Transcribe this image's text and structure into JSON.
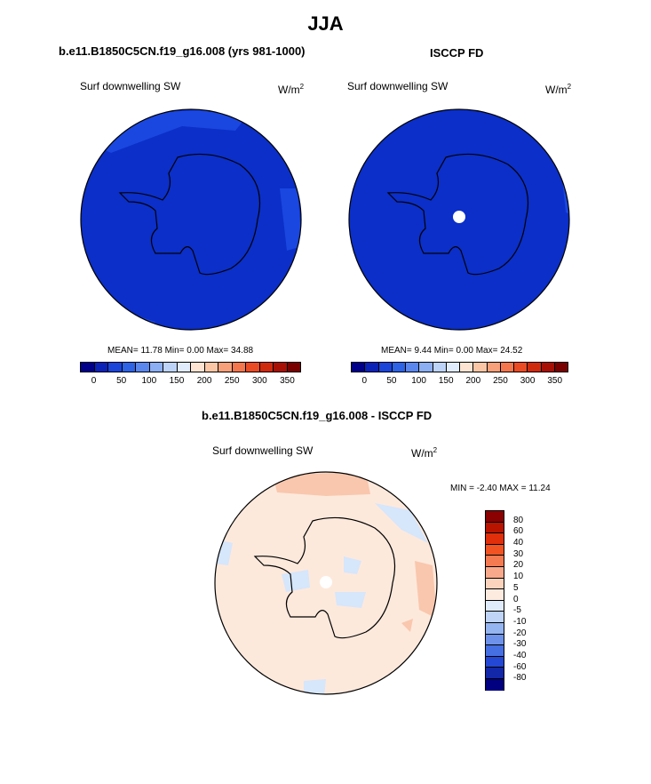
{
  "page": {
    "title": "JJA",
    "panel_left_title": "b.e11.B1850C5CN.f19_g16.008 (yrs 981-1000)",
    "panel_right_title": "ISCCP FD",
    "panel_bottom_title": "b.e11.B1850C5CN.f19_g16.008 - ISCCP FD"
  },
  "maps": {
    "left": {
      "variable": "Surf downwelling SW",
      "units_base": "W/m",
      "units_exp": "2",
      "stats": "MEAN=  11.78  Min=   0.00  Max=  34.88"
    },
    "right": {
      "variable": "Surf downwelling SW",
      "units_base": "W/m",
      "units_exp": "2",
      "stats": "MEAN=   9.44  Min=   0.00  Max=  24.52"
    },
    "diff": {
      "variable": "Surf downwelling SW",
      "units_base": "W/m",
      "units_exp": "2",
      "stats": "MIN =  -2.40 MAX =  11.24"
    }
  },
  "colorbar_top": {
    "colors": [
      "#00008b",
      "#0b22b8",
      "#1b44d9",
      "#2e63e6",
      "#5a87ee",
      "#8caef2",
      "#bdd3f7",
      "#e0ecfb",
      "#fde4d2",
      "#fbc6a6",
      "#f8a07a",
      "#f3764f",
      "#ea4b25",
      "#d02a0d",
      "#a81006",
      "#7a0000"
    ],
    "labels": [
      "0",
      "50",
      "100",
      "150",
      "200",
      "250",
      "300",
      "350"
    ]
  },
  "colorbar_diff": {
    "colors": [
      "#8b0000",
      "#b81400",
      "#e02f0a",
      "#f25322",
      "#f47a52",
      "#f8a98b",
      "#fcd3bd",
      "#fdebdf",
      "#e0ecfb",
      "#bfd4f6",
      "#95b5f1",
      "#6e92ea",
      "#456fe2",
      "#2448d3",
      "#1228a8",
      "#000080"
    ],
    "labels": [
      "80",
      "60",
      "40",
      "30",
      "20",
      "10",
      "5",
      "0",
      "-5",
      "-10",
      "-20",
      "-30",
      "-40",
      "-60",
      "-80"
    ]
  },
  "colors": {
    "base_blue": "#0b2fc8",
    "blue_light": "#1a47e0",
    "diff_base": "#fde9dc",
    "diff_orange": "#f9c7ad",
    "diff_blue": "#d6e6fb",
    "land_outline": "#000000"
  }
}
